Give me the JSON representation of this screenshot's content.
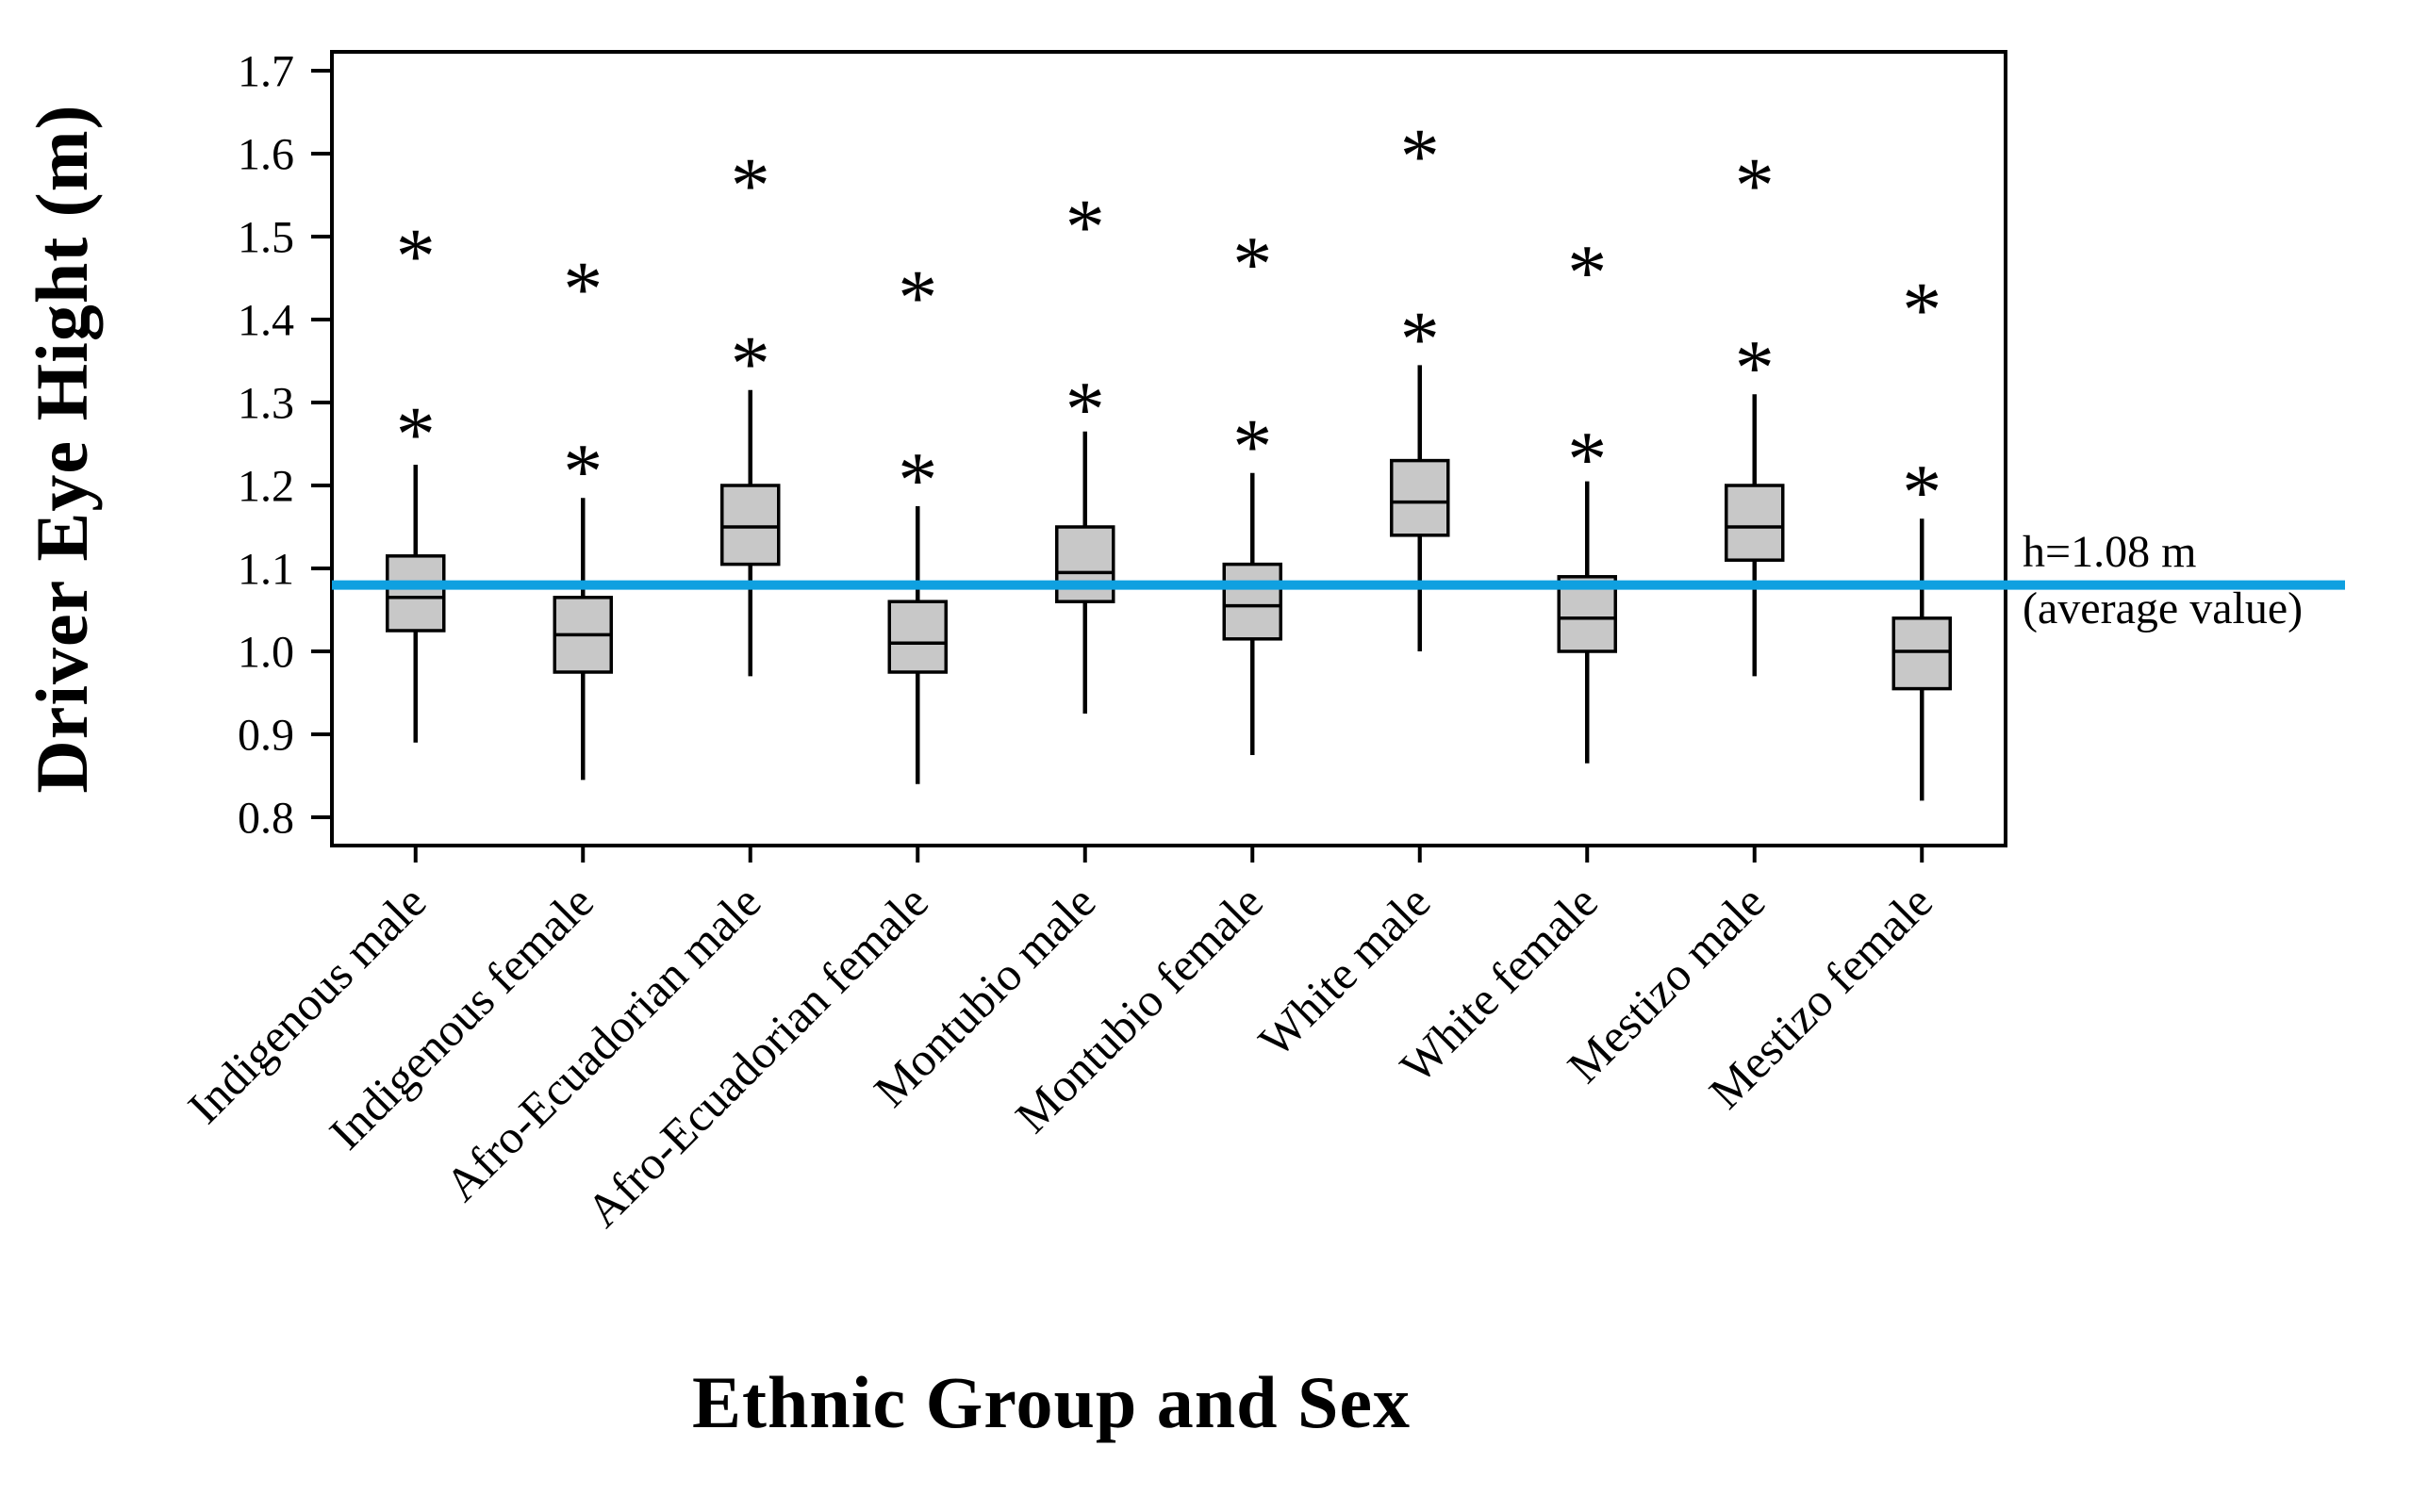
{
  "chart_data": {
    "type": "boxplot",
    "title": "",
    "ylabel": "Driver Eye Hight (m)",
    "xlabel": "Ethnic Group and Sex",
    "ylim": [
      0.766,
      1.723
    ],
    "y_ticks": [
      0.8,
      0.9,
      1.0,
      1.1,
      1.2,
      1.3,
      1.4,
      1.5,
      1.6,
      1.7
    ],
    "y_tick_labels": [
      "0.8",
      "0.9",
      "1.0",
      "1.1",
      "1.2",
      "1.3",
      "1.4",
      "1.5",
      "1.6",
      "1.7"
    ],
    "grid": false,
    "legend": false,
    "categories": [
      "Indigenous male",
      "Indigenous female",
      "Afro-Ecuadorian male",
      "Afro-Ecuadorian female",
      "Montubio male",
      "Montubio female",
      "White male",
      "White female",
      "Mestizo male",
      "Mestizo female"
    ],
    "series": [
      {
        "label": "Indigenous male",
        "whisker_low": 0.89,
        "q1": 1.025,
        "median": 1.065,
        "q3": 1.115,
        "whisker_high": 1.225,
        "outliers": [
          1.275,
          1.49
        ]
      },
      {
        "label": "Indigenous female",
        "whisker_low": 0.845,
        "q1": 0.975,
        "median": 1.02,
        "q3": 1.065,
        "whisker_high": 1.185,
        "outliers": [
          1.23,
          1.45
        ]
      },
      {
        "label": "Afro-Ecuadorian male",
        "whisker_low": 0.97,
        "q1": 1.105,
        "median": 1.15,
        "q3": 1.2,
        "whisker_high": 1.315,
        "outliers": [
          1.36,
          1.575
        ]
      },
      {
        "label": "Afro-Ecuadorian female",
        "whisker_low": 0.84,
        "q1": 0.975,
        "median": 1.01,
        "q3": 1.06,
        "whisker_high": 1.175,
        "outliers": [
          1.22,
          1.44
        ]
      },
      {
        "label": "Montubio male",
        "whisker_low": 0.925,
        "q1": 1.06,
        "median": 1.095,
        "q3": 1.15,
        "whisker_high": 1.265,
        "outliers": [
          1.305,
          1.525
        ]
      },
      {
        "label": "Montubio female",
        "whisker_low": 0.875,
        "q1": 1.015,
        "median": 1.055,
        "q3": 1.105,
        "whisker_high": 1.215,
        "outliers": [
          1.26,
          1.48
        ]
      },
      {
        "label": "White male",
        "whisker_low": 1.0,
        "q1": 1.14,
        "median": 1.18,
        "q3": 1.23,
        "whisker_high": 1.345,
        "outliers": [
          1.39,
          1.61
        ]
      },
      {
        "label": "White female",
        "whisker_low": 0.865,
        "q1": 1.0,
        "median": 1.04,
        "q3": 1.09,
        "whisker_high": 1.205,
        "outliers": [
          1.245,
          1.47
        ]
      },
      {
        "label": "Mestizo male",
        "whisker_low": 0.97,
        "q1": 1.11,
        "median": 1.15,
        "q3": 1.2,
        "whisker_high": 1.31,
        "outliers": [
          1.355,
          1.575
        ]
      },
      {
        "label": "Mestizo female",
        "whisker_low": 0.82,
        "q1": 0.955,
        "median": 1.0,
        "q3": 1.04,
        "whisker_high": 1.16,
        "outliers": [
          1.205,
          1.425
        ]
      }
    ],
    "reference_line": {
      "value": 1.08,
      "label_line1": "h=1.08 m",
      "label_line2": "(average value)",
      "color": "#0FA0E0"
    },
    "style": {
      "box_fill": "#C8C8C8",
      "box_border": "#000000",
      "axis_color": "#000000",
      "outlier_marker": "*"
    }
  }
}
